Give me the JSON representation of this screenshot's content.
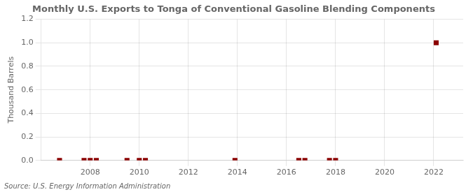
{
  "chart_data": {
    "type": "scatter",
    "title": "Monthly U.S. Exports to Tonga of Conventional Gasoline Blending Components",
    "ylabel": "Thousand Barrels",
    "annotation": "Source: U.S. Energy Information Administration",
    "x": [
      2006.75,
      2007.75,
      2008.0,
      2008.25,
      2009.5,
      2010.0,
      2010.25,
      2013.9,
      2016.5,
      2016.75,
      2017.75,
      2018.0,
      2022.1
    ],
    "values": [
      0.0,
      0.0,
      0.0,
      0.0,
      0.0,
      0.0,
      0.0,
      0.0,
      0.0,
      0.0,
      0.0,
      0.0,
      1.0
    ],
    "color": "#8b0000",
    "marker": "square",
    "xlim": [
      2006,
      2023.2
    ],
    "ylim": [
      0.0,
      1.2
    ],
    "xticks": [
      2008,
      2010,
      2012,
      2014,
      2016,
      2018,
      2020,
      2022
    ],
    "yticks": [
      {
        "value": 0,
        "label": "0.0"
      },
      0.2,
      0.4,
      0.6,
      0.8,
      {
        "value": 1,
        "label": "1.0"
      },
      1.2
    ],
    "grid": true
  }
}
